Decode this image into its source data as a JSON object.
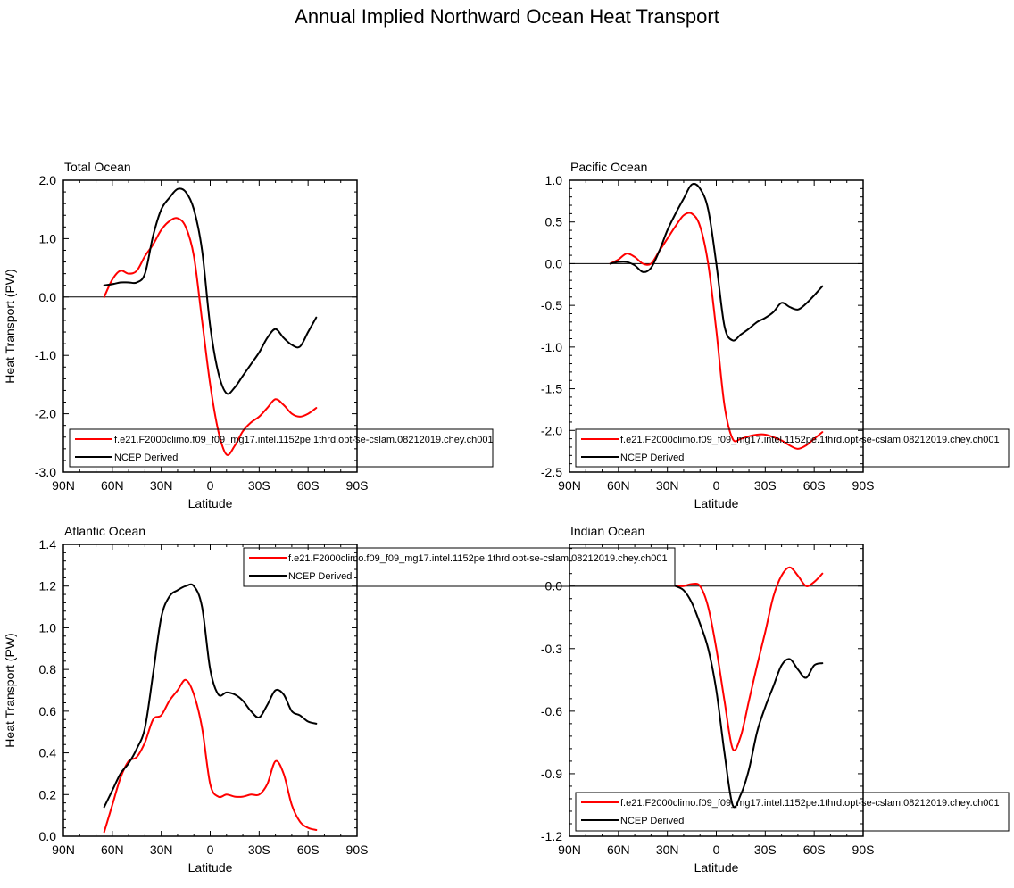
{
  "title": "Annual Implied Northward Ocean Heat Transport",
  "colors": {
    "model": "#ff0000",
    "obs": "#000000",
    "axis": "#000000"
  },
  "legend": {
    "model_label": "f.e21.F2000climo.f09_f09_mg17.intel.1152pe.1thrd.opt-se-cslam.08212019.chey.ch001",
    "obs_label": "NCEP Derived"
  },
  "chart_data": [
    {
      "type": "line",
      "title": "Total Ocean",
      "xlabel": "Latitude",
      "ylabel": "Heat Transport (PW)",
      "xlim": [
        90,
        -90
      ],
      "ylim": [
        -3.0,
        2.0
      ],
      "xticks": [
        90,
        60,
        30,
        0,
        -30,
        -60,
        -90
      ],
      "xtick_labels": [
        "90N",
        "60N",
        "30N",
        "0",
        "30S",
        "60S",
        "90S"
      ],
      "yticks": [
        -3.0,
        -2.0,
        -1.0,
        0.0,
        1.0,
        2.0
      ],
      "ytick_labels": [
        "-3.0",
        "-2.0",
        "-1.0",
        "0.0",
        "1.0",
        "2.0"
      ],
      "zero_line": true,
      "legend_position": "bottom",
      "series": [
        {
          "name": "f.e21.F2000climo.f09_f09_mg17.intel.1152pe.1thrd.opt-se-cslam.08212019.chey.ch001",
          "color": "#ff0000",
          "x": [
            65,
            60,
            55,
            50,
            45,
            40,
            35,
            30,
            25,
            20,
            15,
            10,
            5,
            0,
            -5,
            -10,
            -15,
            -20,
            -25,
            -30,
            -35,
            -40,
            -45,
            -50,
            -55,
            -60,
            -65
          ],
          "y": [
            0.0,
            0.3,
            0.45,
            0.4,
            0.45,
            0.7,
            0.9,
            1.15,
            1.3,
            1.35,
            1.2,
            0.7,
            -0.4,
            -1.5,
            -2.3,
            -2.7,
            -2.55,
            -2.3,
            -2.15,
            -2.05,
            -1.9,
            -1.75,
            -1.85,
            -2.0,
            -2.05,
            -2.0,
            -1.9
          ]
        },
        {
          "name": "NCEP Derived",
          "color": "#000000",
          "x": [
            65,
            60,
            55,
            50,
            45,
            40,
            35,
            30,
            25,
            20,
            15,
            10,
            5,
            0,
            -5,
            -10,
            -15,
            -20,
            -25,
            -30,
            -35,
            -40,
            -45,
            -50,
            -55,
            -60,
            -65
          ],
          "y": [
            0.2,
            0.22,
            0.25,
            0.25,
            0.25,
            0.4,
            1.05,
            1.5,
            1.7,
            1.85,
            1.8,
            1.5,
            0.8,
            -0.5,
            -1.3,
            -1.65,
            -1.55,
            -1.35,
            -1.15,
            -0.95,
            -0.7,
            -0.55,
            -0.7,
            -0.82,
            -0.85,
            -0.6,
            -0.35
          ]
        }
      ]
    },
    {
      "type": "line",
      "title": "Pacific Ocean",
      "xlabel": "Latitude",
      "ylabel": "",
      "xlim": [
        90,
        -90
      ],
      "ylim": [
        -2.5,
        1.0
      ],
      "xticks": [
        90,
        60,
        30,
        0,
        -30,
        -60,
        -90
      ],
      "xtick_labels": [
        "90N",
        "60N",
        "30N",
        "0",
        "30S",
        "60S",
        "90S"
      ],
      "yticks": [
        -2.5,
        -2.0,
        -1.5,
        -1.0,
        -0.5,
        0.0,
        0.5,
        1.0
      ],
      "ytick_labels": [
        "-2.5",
        "-2.0",
        "-1.5",
        "-1.0",
        "-0.5",
        "0.0",
        "0.5",
        "1.0"
      ],
      "zero_line": true,
      "legend_position": "bottom",
      "series": [
        {
          "name": "f.e21.F2000climo.f09_f09_mg17.intel.1152pe.1thrd.opt-se-cslam.08212019.chey.ch001",
          "color": "#ff0000",
          "x": [
            65,
            60,
            55,
            50,
            45,
            40,
            35,
            30,
            25,
            20,
            15,
            10,
            5,
            0,
            -5,
            -10,
            -15,
            -20,
            -25,
            -30,
            -35,
            -40,
            -45,
            -50,
            -55,
            -60,
            -65
          ],
          "y": [
            0.0,
            0.05,
            0.12,
            0.08,
            0.0,
            0.0,
            0.15,
            0.3,
            0.45,
            0.58,
            0.6,
            0.45,
            0.0,
            -0.8,
            -1.7,
            -2.1,
            -2.1,
            -2.07,
            -2.05,
            -2.05,
            -2.08,
            -2.12,
            -2.18,
            -2.22,
            -2.18,
            -2.1,
            -2.02
          ]
        },
        {
          "name": "NCEP Derived",
          "color": "#000000",
          "x": [
            65,
            60,
            55,
            50,
            45,
            40,
            35,
            30,
            25,
            20,
            15,
            10,
            5,
            0,
            -5,
            -10,
            -15,
            -20,
            -25,
            -30,
            -35,
            -40,
            -45,
            -50,
            -55,
            -60,
            -65
          ],
          "y": [
            0.0,
            0.02,
            0.02,
            -0.02,
            -0.1,
            -0.05,
            0.15,
            0.4,
            0.6,
            0.78,
            0.95,
            0.9,
            0.65,
            0.0,
            -0.75,
            -0.92,
            -0.85,
            -0.78,
            -0.7,
            -0.65,
            -0.58,
            -0.47,
            -0.52,
            -0.55,
            -0.48,
            -0.38,
            -0.27
          ]
        }
      ]
    },
    {
      "type": "line",
      "title": "Atlantic Ocean",
      "xlabel": "Latitude",
      "ylabel": "Heat Transport (PW)",
      "xlim": [
        90,
        -90
      ],
      "ylim": [
        0.0,
        1.4
      ],
      "xticks": [
        90,
        60,
        30,
        0,
        -30,
        -60,
        -90
      ],
      "xtick_labels": [
        "90N",
        "60N",
        "30N",
        "0",
        "30S",
        "60S",
        "90S"
      ],
      "yticks": [
        0.0,
        0.2,
        0.4,
        0.6,
        0.8,
        1.0,
        1.2,
        1.4
      ],
      "ytick_labels": [
        "0.0",
        "0.2",
        "0.4",
        "0.6",
        "0.8",
        "1.0",
        "1.2",
        "1.4"
      ],
      "zero_line": false,
      "legend_position": "top-right",
      "series": [
        {
          "name": "f.e21.F2000climo.f09_f09_mg17.intel.1152pe.1thrd.opt-se-cslam.08212019.chey.ch001",
          "color": "#ff0000",
          "x": [
            65,
            60,
            55,
            50,
            45,
            40,
            35,
            30,
            25,
            20,
            15,
            10,
            5,
            0,
            -5,
            -10,
            -15,
            -20,
            -25,
            -30,
            -35,
            -40,
            -45,
            -50,
            -55,
            -60,
            -65
          ],
          "y": [
            0.02,
            0.15,
            0.28,
            0.36,
            0.38,
            0.45,
            0.56,
            0.58,
            0.65,
            0.7,
            0.75,
            0.68,
            0.52,
            0.25,
            0.19,
            0.2,
            0.19,
            0.19,
            0.2,
            0.2,
            0.25,
            0.36,
            0.3,
            0.15,
            0.07,
            0.04,
            0.03
          ]
        },
        {
          "name": "NCEP Derived",
          "color": "#000000",
          "x": [
            65,
            60,
            55,
            50,
            45,
            40,
            35,
            30,
            25,
            20,
            15,
            10,
            5,
            0,
            -5,
            -10,
            -15,
            -20,
            -25,
            -30,
            -35,
            -40,
            -45,
            -50,
            -55,
            -60,
            -65
          ],
          "y": [
            0.14,
            0.22,
            0.3,
            0.35,
            0.42,
            0.52,
            0.78,
            1.05,
            1.15,
            1.18,
            1.2,
            1.2,
            1.1,
            0.8,
            0.68,
            0.69,
            0.68,
            0.65,
            0.6,
            0.57,
            0.63,
            0.7,
            0.68,
            0.6,
            0.58,
            0.55,
            0.54
          ]
        }
      ]
    },
    {
      "type": "line",
      "title": "Indian Ocean",
      "xlabel": "Latitude",
      "ylabel": "",
      "xlim": [
        90,
        -90
      ],
      "ylim": [
        -1.2,
        0.2
      ],
      "xticks": [
        90,
        60,
        30,
        0,
        -30,
        -60,
        -90
      ],
      "xtick_labels": [
        "90N",
        "60N",
        "30N",
        "0",
        "30S",
        "60S",
        "90S"
      ],
      "yticks": [
        -1.2,
        -0.9,
        -0.6,
        -0.3,
        0.0
      ],
      "ytick_labels": [
        "-1.2",
        "-0.9",
        "-0.6",
        "-0.3",
        "0.0"
      ],
      "zero_line": true,
      "legend_position": "bottom",
      "series": [
        {
          "name": "f.e21.F2000climo.f09_f09_mg17.intel.1152pe.1thrd.opt-se-cslam.08212019.chey.ch001",
          "color": "#ff0000",
          "x": [
            25,
            20,
            15,
            10,
            5,
            0,
            -5,
            -10,
            -15,
            -20,
            -25,
            -30,
            -35,
            -40,
            -45,
            -50,
            -55,
            -60,
            -65
          ],
          "y": [
            0.0,
            0.0,
            0.01,
            0.0,
            -0.1,
            -0.3,
            -0.55,
            -0.78,
            -0.72,
            -0.55,
            -0.38,
            -0.22,
            -0.05,
            0.05,
            0.09,
            0.05,
            0.0,
            0.02,
            0.06
          ]
        },
        {
          "name": "NCEP Derived",
          "color": "#000000",
          "x": [
            25,
            20,
            15,
            10,
            5,
            0,
            -5,
            -10,
            -15,
            -20,
            -25,
            -30,
            -35,
            -40,
            -45,
            -50,
            -55,
            -60,
            -65
          ],
          "y": [
            0.0,
            -0.02,
            -0.08,
            -0.18,
            -0.3,
            -0.5,
            -0.8,
            -1.05,
            -1.0,
            -0.88,
            -0.7,
            -0.58,
            -0.48,
            -0.38,
            -0.35,
            -0.4,
            -0.44,
            -0.38,
            -0.37
          ]
        }
      ]
    }
  ]
}
